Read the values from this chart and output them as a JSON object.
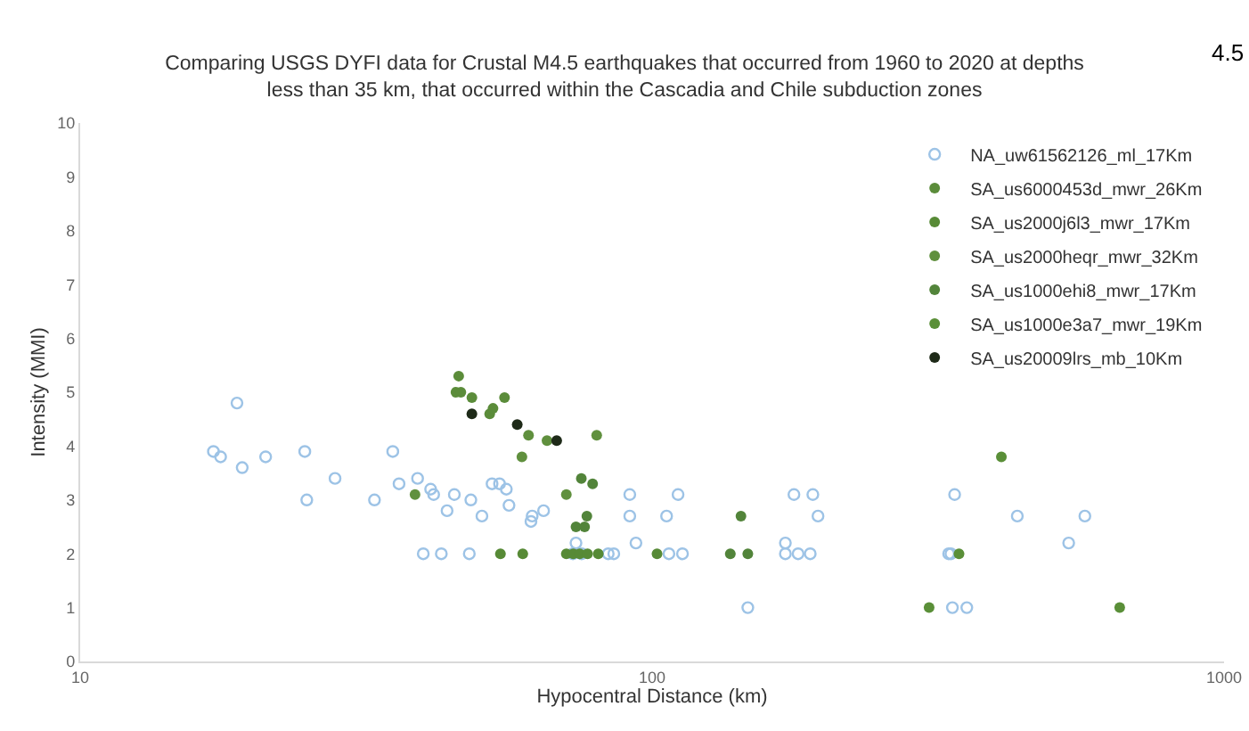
{
  "chart_data": {
    "type": "scatter",
    "title": "Comparing USGS DYFI data for Crustal M4.5 earthquakes that occurred from 1960 to 2020 at depths less than 35 km, that occurred within the Cascadia and Chile subduction zones",
    "annotations": [
      "4.5"
    ],
    "xlabel": "Hypocentral Distance (km)",
    "ylabel": "Intensity (MMI)",
    "log": "x",
    "xlim": [
      10,
      1000
    ],
    "xticks": [
      10,
      100,
      1000
    ],
    "ylim": [
      0,
      10
    ],
    "yticks": [
      0,
      1,
      2,
      3,
      4,
      5,
      6,
      7,
      8,
      9,
      10
    ],
    "grid": false,
    "legend": "top right",
    "marker": "circle",
    "series": [
      {
        "name": "NA_uw61562126_ml_17Km",
        "color": "#9dc3e6",
        "marker": "circle-open",
        "x": [
          18.8,
          17.1,
          17.6,
          19.2,
          21.1,
          24.7,
          24.9,
          27.9,
          32.7,
          35.2,
          36.1,
          38.9,
          41.0,
          41.5,
          43.8,
          45.1,
          48.2,
          50.4,
          52.5,
          54.1,
          55.6,
          56.2,
          39.8,
          42.8,
          47.9,
          61.7,
          61.4,
          64.6,
          91.4,
          111,
          91.4,
          106,
          93.7,
          73.6,
          72.7,
          75.3,
          83.8,
          85.7,
          107,
          113,
          147,
          177,
          191,
          195,
          171,
          171,
          180,
          189,
          338,
          330,
          333,
          335,
          355,
          435,
          571,
          535
        ],
        "values": [
          4.8,
          3.9,
          3.8,
          3.6,
          3.8,
          3.9,
          3.0,
          3.4,
          3.0,
          3.9,
          3.3,
          3.4,
          3.2,
          3.1,
          2.8,
          3.1,
          3.0,
          2.7,
          3.3,
          3.3,
          3.2,
          2.9,
          2.0,
          2.0,
          2.0,
          2.7,
          2.6,
          2.8,
          3.1,
          3.1,
          2.7,
          2.7,
          2.2,
          2.2,
          2.0,
          2.0,
          2.0,
          2.0,
          2.0,
          2.0,
          1.0,
          3.1,
          3.1,
          2.7,
          2.2,
          2.0,
          2.0,
          2.0,
          3.1,
          2.0,
          2.0,
          1.0,
          1.0,
          2.7,
          2.7,
          2.2
        ]
      },
      {
        "name": "SA_us6000453d_mwr_26Km",
        "color": "#5b8c3a",
        "x": [
          45.9,
          45.4,
          46.3,
          48.4,
          55.2,
          52.0,
          52.7
        ],
        "values": [
          5.3,
          5.0,
          5.0,
          4.9,
          4.9,
          4.6,
          4.7
        ]
      },
      {
        "name": "SA_us2000j6l3_mwr_17Km",
        "color": "#578a36",
        "x": [
          54.3,
          59.4,
          70.8,
          72.8,
          74.7,
          77.1,
          80.5,
          102
        ],
        "values": [
          2.0,
          2.0,
          2.0,
          2.0,
          2.0,
          2.0,
          2.0,
          2.0
        ]
      },
      {
        "name": "SA_us2000heqr_mwr_32Km",
        "color": "#60903e",
        "x": [
          59.2,
          60.8,
          65.5,
          80.0,
          38.5,
          70.8
        ],
        "values": [
          3.8,
          4.2,
          4.1,
          4.2,
          3.1,
          3.1
        ]
      },
      {
        "name": "SA_us1000ehi8_mwr_17Km",
        "color": "#52843a",
        "x": [
          75.2,
          78.7,
          76.9,
          73.6,
          76.2,
          137,
          147,
          143
        ],
        "values": [
          3.4,
          3.3,
          2.7,
          2.5,
          2.5,
          2.0,
          2.0,
          2.7
        ]
      },
      {
        "name": "SA_us1000e3a7_mwr_19Km",
        "color": "#5a8f38",
        "x": [
          344,
          408,
          305,
          657
        ],
        "values": [
          2.0,
          3.8,
          1.0,
          1.0
        ]
      },
      {
        "name": "SA_us20009lrs_mb_10Km",
        "color": "#1e2a18",
        "x": [
          48.4,
          58.1,
          68.1
        ],
        "values": [
          4.6,
          4.4,
          4.1
        ]
      }
    ]
  }
}
